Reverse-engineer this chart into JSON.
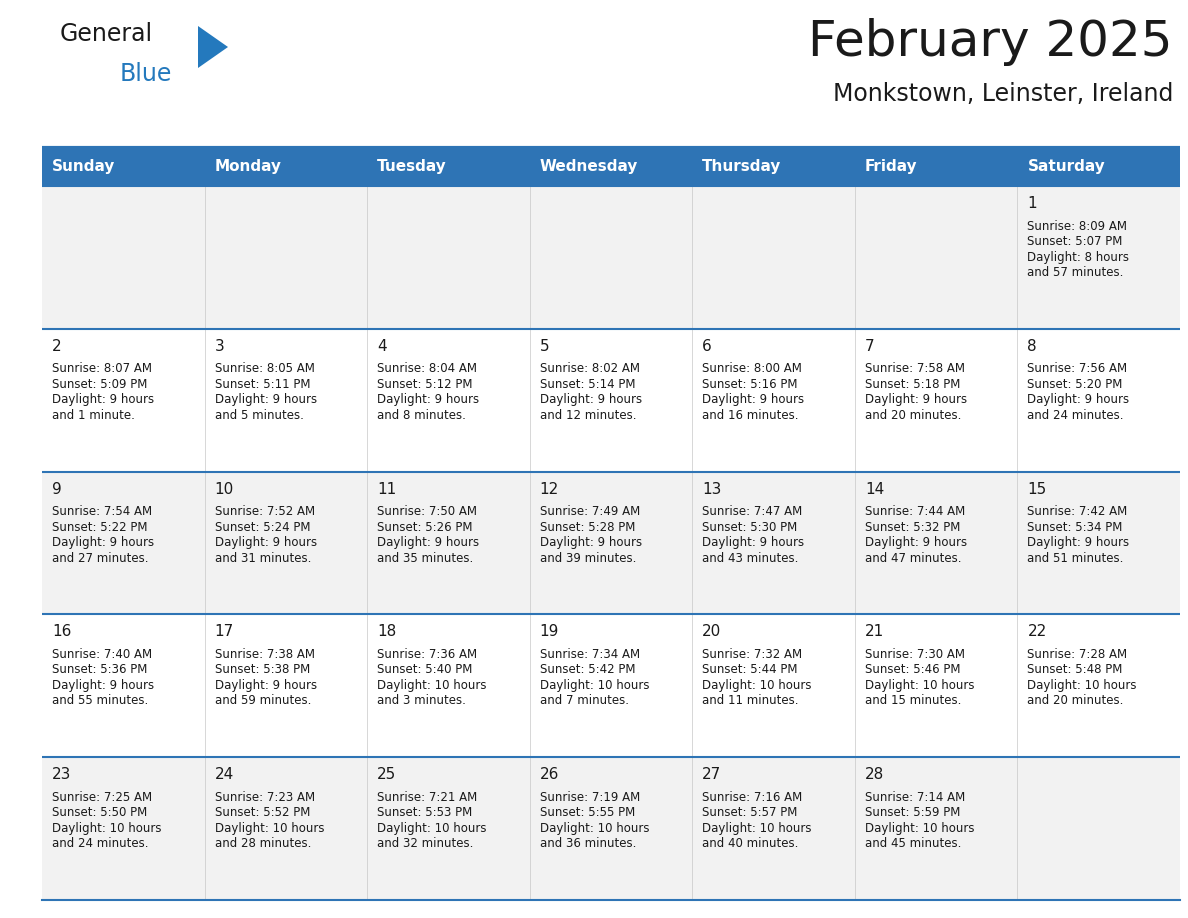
{
  "title": "February 2025",
  "subtitle": "Monkstown, Leinster, Ireland",
  "header_bg": "#2E74B5",
  "header_text_color": "#FFFFFF",
  "cell_bg_row0": "#F2F2F2",
  "cell_bg_odd": "#F2F2F2",
  "cell_bg_even": "#FFFFFF",
  "cell_border_color": "#2E74B5",
  "text_color": "#1a1a1a",
  "day_names": [
    "Sunday",
    "Monday",
    "Tuesday",
    "Wednesday",
    "Thursday",
    "Friday",
    "Saturday"
  ],
  "days": [
    {
      "day": 1,
      "col": 6,
      "row": 0,
      "sunrise": "8:09 AM",
      "sunset": "5:07 PM",
      "daylight_line1": "Daylight: 8 hours",
      "daylight_line2": "and 57 minutes."
    },
    {
      "day": 2,
      "col": 0,
      "row": 1,
      "sunrise": "8:07 AM",
      "sunset": "5:09 PM",
      "daylight_line1": "Daylight: 9 hours",
      "daylight_line2": "and 1 minute."
    },
    {
      "day": 3,
      "col": 1,
      "row": 1,
      "sunrise": "8:05 AM",
      "sunset": "5:11 PM",
      "daylight_line1": "Daylight: 9 hours",
      "daylight_line2": "and 5 minutes."
    },
    {
      "day": 4,
      "col": 2,
      "row": 1,
      "sunrise": "8:04 AM",
      "sunset": "5:12 PM",
      "daylight_line1": "Daylight: 9 hours",
      "daylight_line2": "and 8 minutes."
    },
    {
      "day": 5,
      "col": 3,
      "row": 1,
      "sunrise": "8:02 AM",
      "sunset": "5:14 PM",
      "daylight_line1": "Daylight: 9 hours",
      "daylight_line2": "and 12 minutes."
    },
    {
      "day": 6,
      "col": 4,
      "row": 1,
      "sunrise": "8:00 AM",
      "sunset": "5:16 PM",
      "daylight_line1": "Daylight: 9 hours",
      "daylight_line2": "and 16 minutes."
    },
    {
      "day": 7,
      "col": 5,
      "row": 1,
      "sunrise": "7:58 AM",
      "sunset": "5:18 PM",
      "daylight_line1": "Daylight: 9 hours",
      "daylight_line2": "and 20 minutes."
    },
    {
      "day": 8,
      "col": 6,
      "row": 1,
      "sunrise": "7:56 AM",
      "sunset": "5:20 PM",
      "daylight_line1": "Daylight: 9 hours",
      "daylight_line2": "and 24 minutes."
    },
    {
      "day": 9,
      "col": 0,
      "row": 2,
      "sunrise": "7:54 AM",
      "sunset": "5:22 PM",
      "daylight_line1": "Daylight: 9 hours",
      "daylight_line2": "and 27 minutes."
    },
    {
      "day": 10,
      "col": 1,
      "row": 2,
      "sunrise": "7:52 AM",
      "sunset": "5:24 PM",
      "daylight_line1": "Daylight: 9 hours",
      "daylight_line2": "and 31 minutes."
    },
    {
      "day": 11,
      "col": 2,
      "row": 2,
      "sunrise": "7:50 AM",
      "sunset": "5:26 PM",
      "daylight_line1": "Daylight: 9 hours",
      "daylight_line2": "and 35 minutes."
    },
    {
      "day": 12,
      "col": 3,
      "row": 2,
      "sunrise": "7:49 AM",
      "sunset": "5:28 PM",
      "daylight_line1": "Daylight: 9 hours",
      "daylight_line2": "and 39 minutes."
    },
    {
      "day": 13,
      "col": 4,
      "row": 2,
      "sunrise": "7:47 AM",
      "sunset": "5:30 PM",
      "daylight_line1": "Daylight: 9 hours",
      "daylight_line2": "and 43 minutes."
    },
    {
      "day": 14,
      "col": 5,
      "row": 2,
      "sunrise": "7:44 AM",
      "sunset": "5:32 PM",
      "daylight_line1": "Daylight: 9 hours",
      "daylight_line2": "and 47 minutes."
    },
    {
      "day": 15,
      "col": 6,
      "row": 2,
      "sunrise": "7:42 AM",
      "sunset": "5:34 PM",
      "daylight_line1": "Daylight: 9 hours",
      "daylight_line2": "and 51 minutes."
    },
    {
      "day": 16,
      "col": 0,
      "row": 3,
      "sunrise": "7:40 AM",
      "sunset": "5:36 PM",
      "daylight_line1": "Daylight: 9 hours",
      "daylight_line2": "and 55 minutes."
    },
    {
      "day": 17,
      "col": 1,
      "row": 3,
      "sunrise": "7:38 AM",
      "sunset": "5:38 PM",
      "daylight_line1": "Daylight: 9 hours",
      "daylight_line2": "and 59 minutes."
    },
    {
      "day": 18,
      "col": 2,
      "row": 3,
      "sunrise": "7:36 AM",
      "sunset": "5:40 PM",
      "daylight_line1": "Daylight: 10 hours",
      "daylight_line2": "and 3 minutes."
    },
    {
      "day": 19,
      "col": 3,
      "row": 3,
      "sunrise": "7:34 AM",
      "sunset": "5:42 PM",
      "daylight_line1": "Daylight: 10 hours",
      "daylight_line2": "and 7 minutes."
    },
    {
      "day": 20,
      "col": 4,
      "row": 3,
      "sunrise": "7:32 AM",
      "sunset": "5:44 PM",
      "daylight_line1": "Daylight: 10 hours",
      "daylight_line2": "and 11 minutes."
    },
    {
      "day": 21,
      "col": 5,
      "row": 3,
      "sunrise": "7:30 AM",
      "sunset": "5:46 PM",
      "daylight_line1": "Daylight: 10 hours",
      "daylight_line2": "and 15 minutes."
    },
    {
      "day": 22,
      "col": 6,
      "row": 3,
      "sunrise": "7:28 AM",
      "sunset": "5:48 PM",
      "daylight_line1": "Daylight: 10 hours",
      "daylight_line2": "and 20 minutes."
    },
    {
      "day": 23,
      "col": 0,
      "row": 4,
      "sunrise": "7:25 AM",
      "sunset": "5:50 PM",
      "daylight_line1": "Daylight: 10 hours",
      "daylight_line2": "and 24 minutes."
    },
    {
      "day": 24,
      "col": 1,
      "row": 4,
      "sunrise": "7:23 AM",
      "sunset": "5:52 PM",
      "daylight_line1": "Daylight: 10 hours",
      "daylight_line2": "and 28 minutes."
    },
    {
      "day": 25,
      "col": 2,
      "row": 4,
      "sunrise": "7:21 AM",
      "sunset": "5:53 PM",
      "daylight_line1": "Daylight: 10 hours",
      "daylight_line2": "and 32 minutes."
    },
    {
      "day": 26,
      "col": 3,
      "row": 4,
      "sunrise": "7:19 AM",
      "sunset": "5:55 PM",
      "daylight_line1": "Daylight: 10 hours",
      "daylight_line2": "and 36 minutes."
    },
    {
      "day": 27,
      "col": 4,
      "row": 4,
      "sunrise": "7:16 AM",
      "sunset": "5:57 PM",
      "daylight_line1": "Daylight: 10 hours",
      "daylight_line2": "and 40 minutes."
    },
    {
      "day": 28,
      "col": 5,
      "row": 4,
      "sunrise": "7:14 AM",
      "sunset": "5:59 PM",
      "daylight_line1": "Daylight: 10 hours",
      "daylight_line2": "and 45 minutes."
    }
  ],
  "num_rows": 5,
  "num_cols": 7,
  "logo_color_general": "#1a1a1a",
  "logo_color_blue": "#2479BD",
  "logo_triangle_color": "#2479BD",
  "title_fontsize": 36,
  "subtitle_fontsize": 17,
  "header_fontsize": 11,
  "day_num_fontsize": 11,
  "cell_text_fontsize": 8.5
}
